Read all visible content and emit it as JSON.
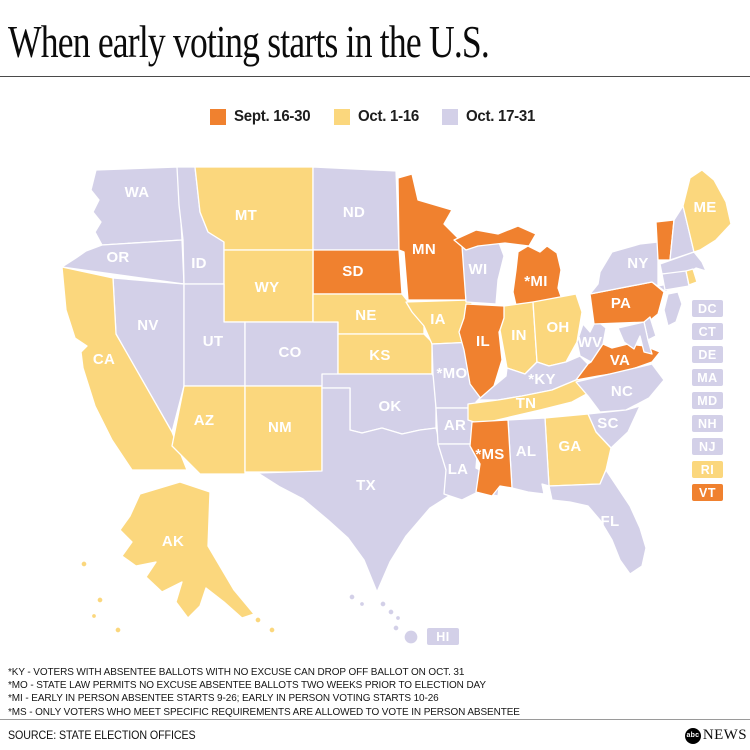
{
  "title": "When early voting starts in the U.S.",
  "legend": {
    "items": [
      {
        "id": "sept16",
        "label": "Sept. 16-30",
        "color": "#F0812F"
      },
      {
        "id": "oct1",
        "label": "Oct. 1-16",
        "color": "#FBD77D"
      },
      {
        "id": "oct17",
        "label": "Oct. 17-31",
        "color": "#D3D0E8"
      }
    ]
  },
  "map": {
    "border_color": "#FFFFFF",
    "label_color": "#FFFFFF",
    "states": {
      "WA": {
        "label": "WA",
        "category": "oct17"
      },
      "OR": {
        "label": "OR",
        "category": "oct17"
      },
      "CA": {
        "label": "CA",
        "category": "oct1"
      },
      "NV": {
        "label": "NV",
        "category": "oct17"
      },
      "ID": {
        "label": "ID",
        "category": "oct17"
      },
      "MT": {
        "label": "MT",
        "category": "oct1"
      },
      "WY": {
        "label": "WY",
        "category": "oct1"
      },
      "UT": {
        "label": "UT",
        "category": "oct17"
      },
      "CO": {
        "label": "CO",
        "category": "oct17"
      },
      "AZ": {
        "label": "AZ",
        "category": "oct1"
      },
      "NM": {
        "label": "NM",
        "category": "oct1"
      },
      "ND": {
        "label": "ND",
        "category": "oct17"
      },
      "SD": {
        "label": "SD",
        "category": "sept16"
      },
      "NE": {
        "label": "NE",
        "category": "oct1"
      },
      "KS": {
        "label": "KS",
        "category": "oct1"
      },
      "OK": {
        "label": "OK",
        "category": "oct17"
      },
      "TX": {
        "label": "TX",
        "category": "oct17"
      },
      "MN": {
        "label": "MN",
        "category": "sept16"
      },
      "IA": {
        "label": "IA",
        "category": "oct1"
      },
      "MO": {
        "label": "*MO",
        "category": "oct17"
      },
      "WI": {
        "label": "WI",
        "category": "oct17"
      },
      "IL": {
        "label": "IL",
        "category": "sept16"
      },
      "IN": {
        "label": "IN",
        "category": "oct1"
      },
      "OH": {
        "label": "OH",
        "category": "oct1"
      },
      "MI": {
        "label": "*MI",
        "category": "sept16"
      },
      "KY": {
        "label": "*KY",
        "category": "oct17"
      },
      "WV": {
        "label": "WV",
        "category": "oct17"
      },
      "VA": {
        "label": "VA",
        "category": "sept16"
      },
      "PA": {
        "label": "PA",
        "category": "sept16"
      },
      "NY": {
        "label": "NY",
        "category": "oct17"
      },
      "VT": {
        "label": "",
        "category": "sept16"
      },
      "NH": {
        "label": "",
        "category": "oct17"
      },
      "ME": {
        "label": "ME",
        "category": "oct1"
      },
      "MA": {
        "label": "",
        "category": "oct17"
      },
      "CT": {
        "label": "",
        "category": "oct17"
      },
      "RI": {
        "label": "",
        "category": "oct1"
      },
      "NJ": {
        "label": "",
        "category": "oct17"
      },
      "DE": {
        "label": "",
        "category": "oct17"
      },
      "MD": {
        "label": "",
        "category": "oct17"
      },
      "TN": {
        "label": "TN",
        "category": "oct1"
      },
      "MS": {
        "label": "*MS",
        "category": "sept16"
      },
      "AL": {
        "label": "AL",
        "category": "oct17"
      },
      "GA": {
        "label": "GA",
        "category": "oct1"
      },
      "SC": {
        "label": "SC",
        "category": "oct17"
      },
      "NC": {
        "label": "NC",
        "category": "oct17"
      },
      "AR": {
        "label": "AR",
        "category": "oct17"
      },
      "LA": {
        "label": "LA",
        "category": "oct17"
      },
      "FL": {
        "label": "FL",
        "category": "oct17"
      },
      "AK": {
        "label": "AK",
        "category": "oct1"
      },
      "HI": {
        "label": "",
        "category": "oct17"
      }
    },
    "badges": [
      {
        "code": "DC",
        "category": "oct17"
      },
      {
        "code": "CT",
        "category": "oct17"
      },
      {
        "code": "DE",
        "category": "oct17"
      },
      {
        "code": "MA",
        "category": "oct17"
      },
      {
        "code": "MD",
        "category": "oct17"
      },
      {
        "code": "NH",
        "category": "oct17"
      },
      {
        "code": "NJ",
        "category": "oct17"
      },
      {
        "code": "RI",
        "category": "oct1"
      },
      {
        "code": "VT",
        "category": "sept16"
      }
    ],
    "hawaii_badge": {
      "code": "HI",
      "category": "oct17"
    }
  },
  "footnotes": [
    "*KY - VOTERS WITH ABSENTEE BALLOTS WITH NO EXCUSE CAN DROP OFF BALLOT ON OCT. 31",
    "*MO - STATE LAW PERMITS NO EXCUSE ABSENTEE BALLOTS TWO WEEKS PRIOR TO ELECTION DAY",
    "*MI - EARLY IN PERSON ABSENTEE STARTS 9-26; EARLY IN PERSON VOTING STARTS 10-26",
    "*MS - ONLY VOTERS WHO MEET SPECIFIC REQUIREMENTS ARE ALLOWED TO VOTE IN PERSON ABSENTEE"
  ],
  "source": "SOURCE: STATE ELECTION OFFICES",
  "logo": {
    "circle_text": "abc",
    "news_text": "NEWS"
  }
}
